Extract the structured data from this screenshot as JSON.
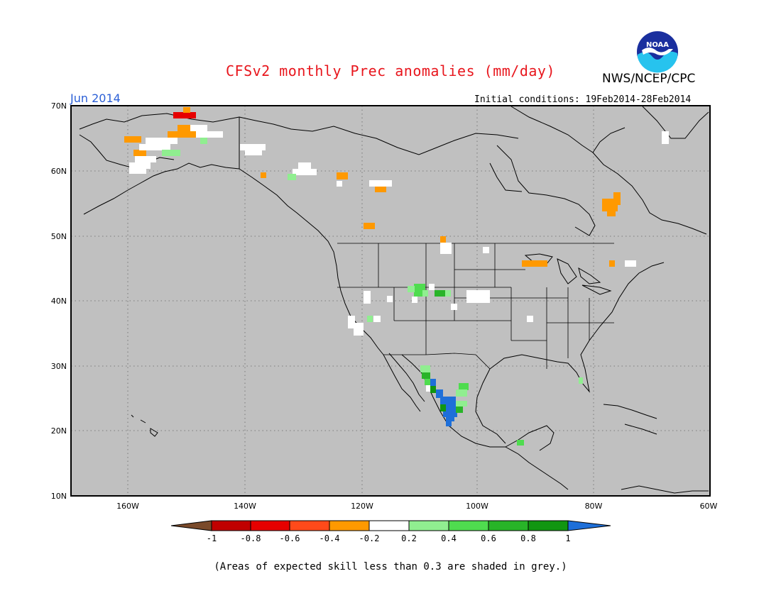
{
  "header": {
    "title": "CFSv2 monthly Prec anomalies (mm/day)",
    "org": "NWS/NCEP/CPC",
    "logo_text": "NOAA",
    "valid_month": "Jun 2014",
    "initial_conditions": "Initial conditions: 19Feb2014-28Feb2014"
  },
  "axes": {
    "lat_labels": [
      "70N",
      "60N",
      "50N",
      "40N",
      "30N",
      "20N",
      "10N"
    ],
    "lon_labels": [
      "160W",
      "140W",
      "120W",
      "100W",
      "80W",
      "60W"
    ]
  },
  "legend": {
    "labels": [
      "-1",
      "-0.8",
      "-0.6",
      "-0.4",
      "-0.2",
      "0.2",
      "0.4",
      "0.6",
      "0.8",
      "1"
    ],
    "colors": [
      "#7a4a2a",
      "#c00000",
      "#e60000",
      "#ff4a1a",
      "#ff9900",
      "#ffffff",
      "#90ee90",
      "#4fdc4f",
      "#28b428",
      "#119611",
      "#1e6fd9"
    ]
  },
  "footnote": "(Areas of expected skill less than 0.3 are shaded in grey.)",
  "colors": {
    "background_grey": "#c0c0c0",
    "title_red": "#e8161d",
    "month_blue": "#2b5fd6"
  }
}
